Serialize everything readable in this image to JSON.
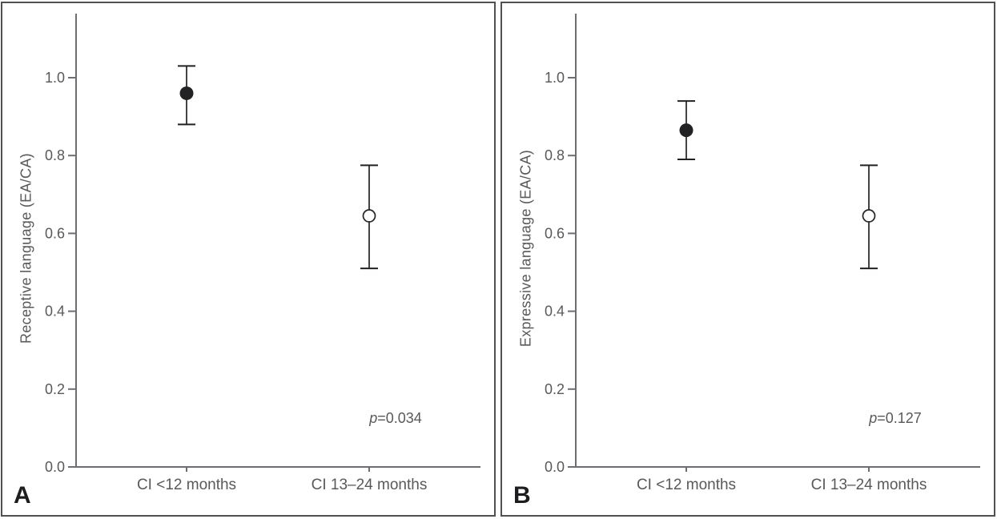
{
  "figure": {
    "background": "#ffffff",
    "frame_color": "#515154",
    "axis_color": "#6d6e71",
    "marker_color": "#222224",
    "text_color": "#58595b"
  },
  "chart_data": [
    {
      "type": "scatter",
      "panel_label": "A",
      "ylabel": "Receptive language (EA/CA)",
      "xlabel": "",
      "categories": [
        "CI <12 months",
        "CI 13–24 months"
      ],
      "yticks": [
        0.0,
        0.2,
        0.4,
        0.6,
        0.8,
        1.0
      ],
      "ytick_labels": [
        "0.0",
        "0.2",
        "0.4",
        "0.6",
        "0.8",
        "1.0"
      ],
      "ylim": [
        0,
        1.16
      ],
      "grid": "off",
      "legend": "none",
      "p_symbol": "p",
      "p_value_text": "=0.034",
      "series": [
        {
          "category": "CI <12 months",
          "marker": "filled-circle",
          "mean": 0.96,
          "ci_low": 0.88,
          "ci_high": 1.03
        },
        {
          "category": "CI 13–24 months",
          "marker": "open-circle",
          "mean": 0.645,
          "ci_low": 0.51,
          "ci_high": 0.775
        }
      ]
    },
    {
      "type": "scatter",
      "panel_label": "B",
      "ylabel": "Expressive language (EA/CA)",
      "xlabel": "",
      "categories": [
        "CI <12 months",
        "CI 13–24 months"
      ],
      "yticks": [
        0.0,
        0.2,
        0.4,
        0.6,
        0.8,
        1.0
      ],
      "ytick_labels": [
        "0.0",
        "0.2",
        "0.4",
        "0.6",
        "0.8",
        "1.0"
      ],
      "ylim": [
        0,
        1.16
      ],
      "grid": "off",
      "legend": "none",
      "p_symbol": "p",
      "p_value_text": "=0.127",
      "series": [
        {
          "category": "CI <12 months",
          "marker": "filled-circle",
          "mean": 0.865,
          "ci_low": 0.79,
          "ci_high": 0.94
        },
        {
          "category": "CI 13–24 months",
          "marker": "open-circle",
          "mean": 0.645,
          "ci_low": 0.51,
          "ci_high": 0.775
        }
      ]
    }
  ]
}
